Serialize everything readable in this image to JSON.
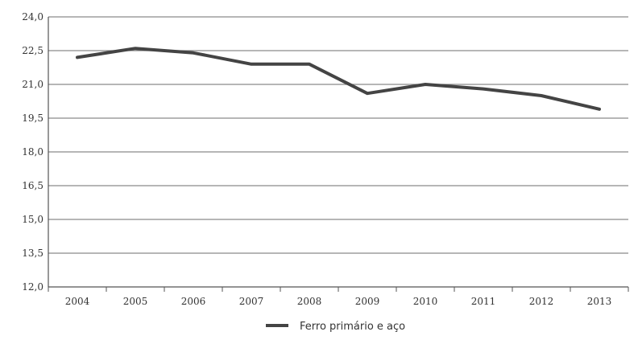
{
  "chart_data": {
    "type": "line",
    "categories": [
      "2004",
      "2005",
      "2006",
      "2007",
      "2008",
      "2009",
      "2010",
      "2011",
      "2012",
      "2013"
    ],
    "series": [
      {
        "name": "Ferro primário e aço",
        "values": [
          22.2,
          22.6,
          22.4,
          21.9,
          21.9,
          20.6,
          21.0,
          20.8,
          20.5,
          19.9
        ],
        "color": "#444444"
      }
    ],
    "y_ticks": [
      "24,0",
      "22,5",
      "21,0",
      "19,5",
      "18,0",
      "16,5",
      "15,0",
      "13,5",
      "12,0"
    ],
    "ylim": [
      12.0,
      24.0
    ],
    "y_step": 1.5,
    "grid": true,
    "legend_position": "bottom-center"
  }
}
